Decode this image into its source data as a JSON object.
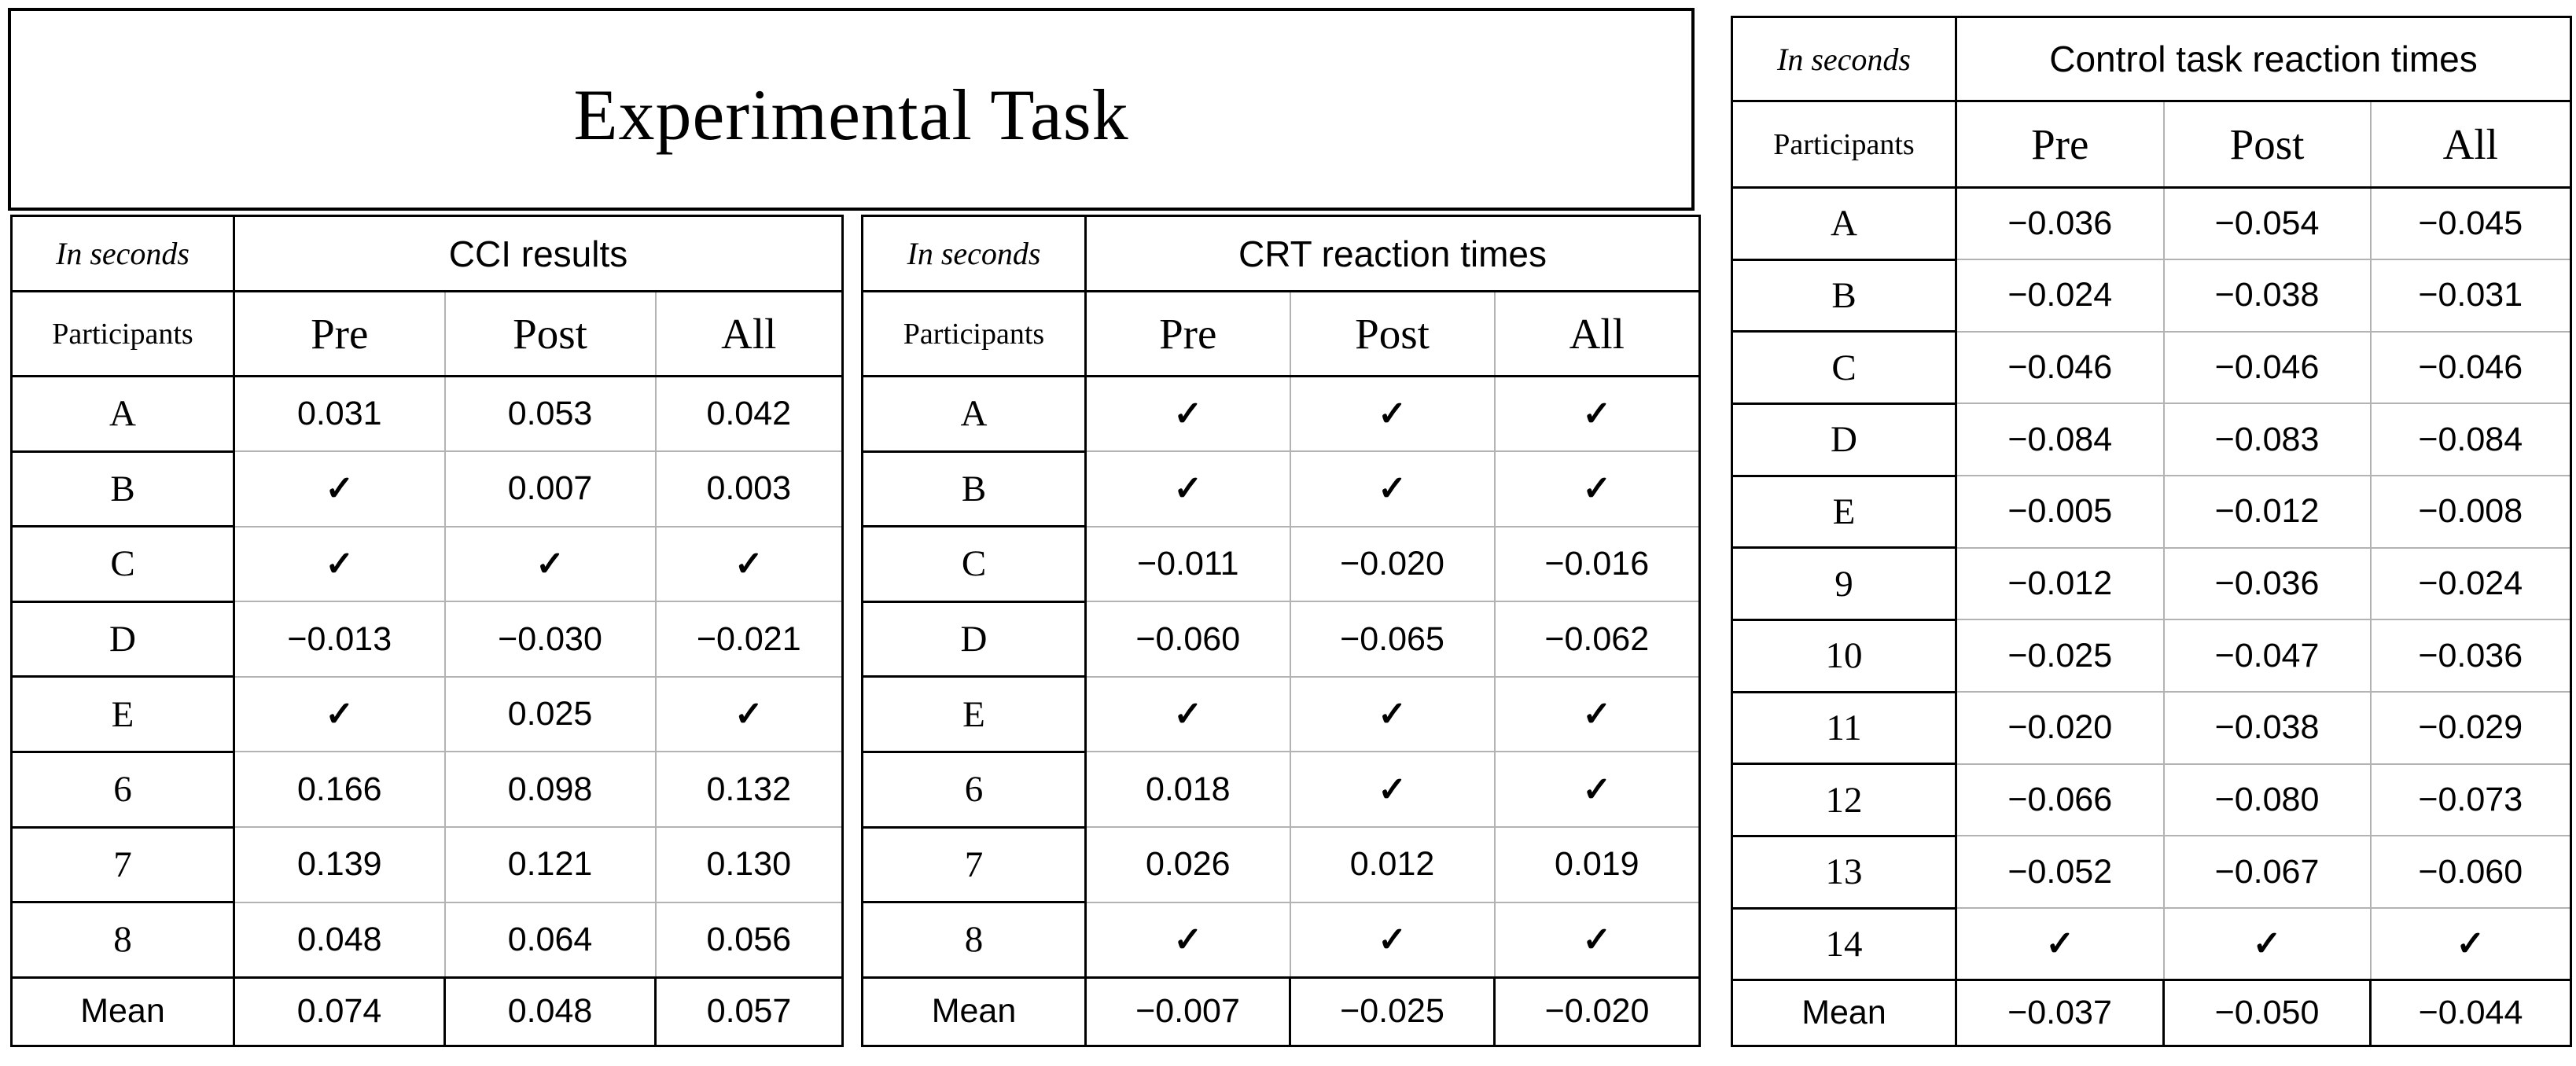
{
  "page": {
    "title": "Experimental Task"
  },
  "colors": {
    "grid_gray": "#b3b3b3",
    "border_black": "#000000",
    "background": "#ffffff"
  },
  "tables": [
    {
      "id": "cci",
      "unit_label": "In seconds",
      "caption": "CCI results",
      "participants_label": "Participants",
      "columns": [
        "Pre",
        "Post",
        "All"
      ],
      "rows": [
        {
          "label": "A",
          "values": [
            "0.031",
            "0.053",
            "0.042"
          ]
        },
        {
          "label": "B",
          "values": [
            "✓",
            "0.007",
            "0.003"
          ]
        },
        {
          "label": "C",
          "values": [
            "✓",
            "✓",
            "✓"
          ]
        },
        {
          "label": "D",
          "values": [
            "−0.013",
            "−0.030",
            "−0.021"
          ]
        },
        {
          "label": "E",
          "values": [
            "✓",
            "0.025",
            "✓"
          ]
        },
        {
          "label": "6",
          "values": [
            "0.166",
            "0.098",
            "0.132"
          ]
        },
        {
          "label": "7",
          "values": [
            "0.139",
            "0.121",
            "0.130"
          ]
        },
        {
          "label": "8",
          "values": [
            "0.048",
            "0.064",
            "0.056"
          ]
        },
        {
          "label": "Mean",
          "values": [
            "0.074",
            "0.048",
            "0.057"
          ],
          "mean": true
        }
      ]
    },
    {
      "id": "crt",
      "unit_label": "In seconds",
      "caption": "CRT reaction times",
      "participants_label": "Participants",
      "columns": [
        "Pre",
        "Post",
        "All"
      ],
      "rows": [
        {
          "label": "A",
          "values": [
            "✓",
            "✓",
            "✓"
          ]
        },
        {
          "label": "B",
          "values": [
            "✓",
            "✓",
            "✓"
          ]
        },
        {
          "label": "C",
          "values": [
            "−0.011",
            "−0.020",
            "−0.016"
          ]
        },
        {
          "label": "D",
          "values": [
            "−0.060",
            "−0.065",
            "−0.062"
          ]
        },
        {
          "label": "E",
          "values": [
            "✓",
            "✓",
            "✓"
          ]
        },
        {
          "label": "6",
          "values": [
            "0.018",
            "✓",
            "✓"
          ]
        },
        {
          "label": "7",
          "values": [
            "0.026",
            "0.012",
            "0.019"
          ]
        },
        {
          "label": "8",
          "values": [
            "✓",
            "✓",
            "✓"
          ]
        },
        {
          "label": "Mean",
          "values": [
            "−0.007",
            "−0.025",
            "−0.020"
          ],
          "mean": true
        }
      ]
    },
    {
      "id": "control",
      "unit_label": "In seconds",
      "caption": "Control task reaction times",
      "participants_label": "Participants",
      "columns": [
        "Pre",
        "Post",
        "All"
      ],
      "rows": [
        {
          "label": "A",
          "values": [
            "−0.036",
            "−0.054",
            "−0.045"
          ]
        },
        {
          "label": "B",
          "values": [
            "−0.024",
            "−0.038",
            "−0.031"
          ]
        },
        {
          "label": "C",
          "values": [
            "−0.046",
            "−0.046",
            "−0.046"
          ]
        },
        {
          "label": "D",
          "values": [
            "−0.084",
            "−0.083",
            "−0.084"
          ]
        },
        {
          "label": "E",
          "values": [
            "−0.005",
            "−0.012",
            "−0.008"
          ]
        },
        {
          "label": "9",
          "values": [
            "−0.012",
            "−0.036",
            "−0.024"
          ]
        },
        {
          "label": "10",
          "values": [
            "−0.025",
            "−0.047",
            "−0.036"
          ]
        },
        {
          "label": "11",
          "values": [
            "−0.020",
            "−0.038",
            "−0.029"
          ]
        },
        {
          "label": "12",
          "values": [
            "−0.066",
            "−0.080",
            "−0.073"
          ]
        },
        {
          "label": "13",
          "values": [
            "−0.052",
            "−0.067",
            "−0.060"
          ]
        },
        {
          "label": "14",
          "values": [
            "✓",
            "✓",
            "✓"
          ]
        },
        {
          "label": "Mean",
          "values": [
            "−0.037",
            "−0.050",
            "−0.044"
          ],
          "mean": true
        }
      ]
    }
  ]
}
